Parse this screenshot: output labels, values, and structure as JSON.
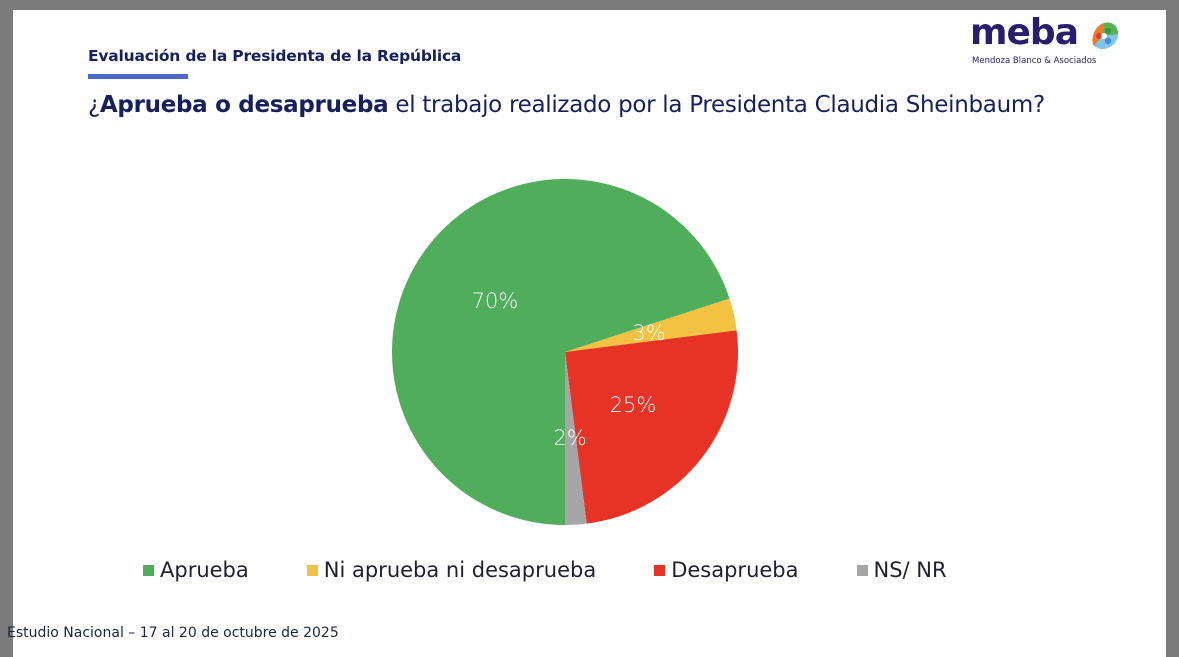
{
  "header": {
    "section_title": "Evaluación de la Presidenta de la República",
    "question_bold": "Aprueba o desaprueba",
    "question_prefix": "¿",
    "question_rest": " el trabajo realizado por la Presidenta Claudia Sheinbaum?"
  },
  "logo": {
    "word": "meba",
    "subtitle": "Mendoza Blanco & Asociados"
  },
  "footer": {
    "text": "Estudio Nacional – 17 al 20 de octubre de 2025"
  },
  "chart_data": {
    "type": "pie",
    "title": "¿Aprueba o desaprueba el trabajo realizado por la Presidenta Claudia Sheinbaum?",
    "categories": [
      "Aprueba",
      "Ni aprueba ni desaprueba",
      "Desaprueba",
      "NS/ NR"
    ],
    "values": [
      70,
      3,
      25,
      2
    ],
    "labels": [
      "70%",
      "3%",
      "25%",
      "2%"
    ],
    "colors": [
      "#4fad5b",
      "#f4c242",
      "#e63325",
      "#a6a6a8"
    ],
    "legend_position": "bottom",
    "unit": "%"
  }
}
